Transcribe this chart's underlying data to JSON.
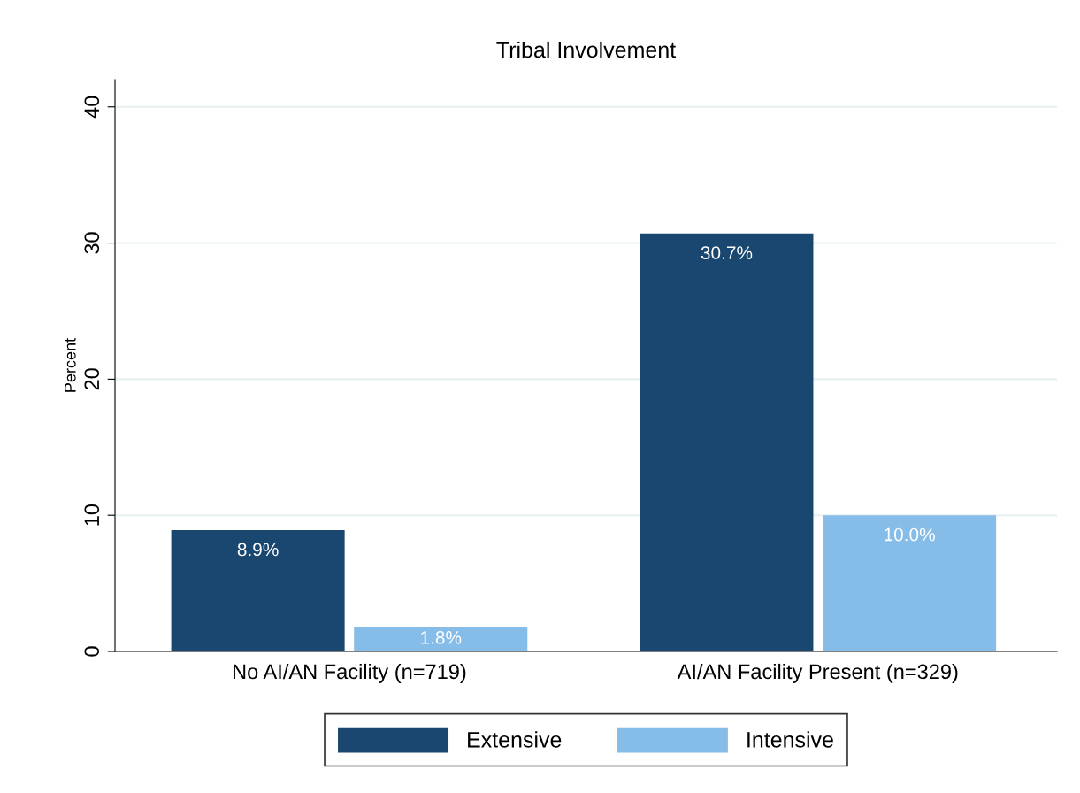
{
  "chart_data": {
    "type": "bar",
    "title": "Tribal Involvement",
    "ylabel": "Percent",
    "categories": [
      "No AI/AN Facility (n=719)",
      "AI/AN Facility Present (n=329)"
    ],
    "series": [
      {
        "name": "Extensive",
        "color": "#1a476f",
        "values": [
          8.9,
          30.7
        ],
        "value_labels": [
          "8.9%",
          "30.7%"
        ]
      },
      {
        "name": "Intensive",
        "color": "#86bde8",
        "values": [
          1.8,
          10.0
        ],
        "value_labels": [
          "1.8%",
          "10.0%"
        ]
      }
    ],
    "ylim": [
      0,
      42
    ],
    "yticks": [
      0,
      10,
      20,
      30,
      40
    ],
    "grid": "y",
    "legend": "bottom"
  }
}
